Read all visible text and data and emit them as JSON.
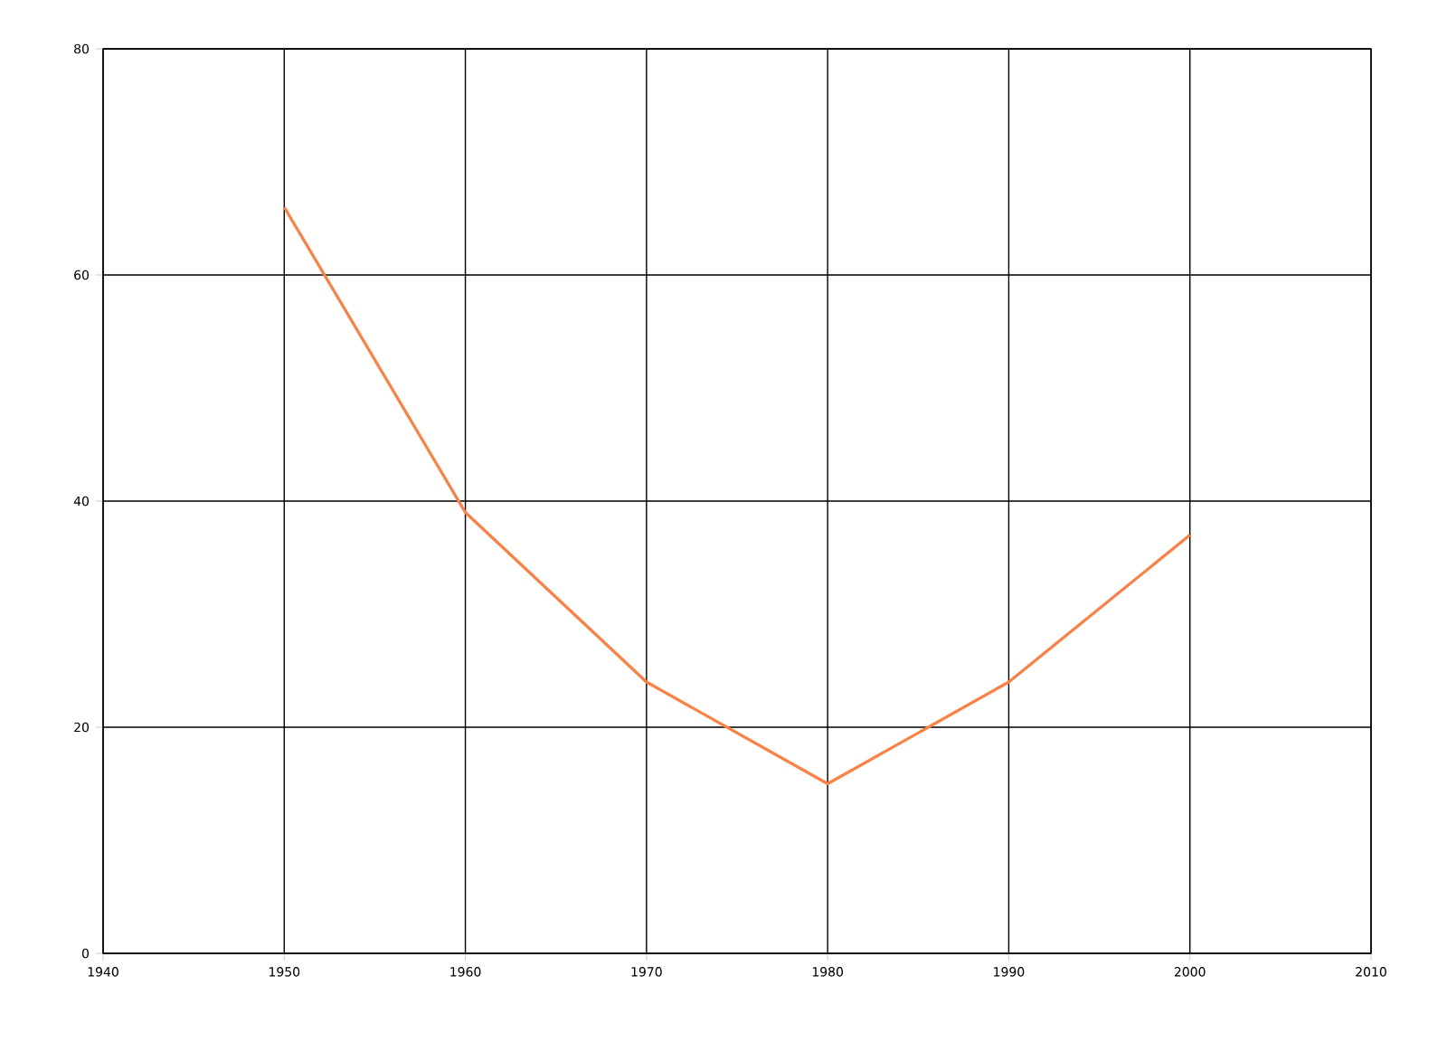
{
  "chart_data": {
    "type": "line",
    "x": [
      1950,
      1960,
      1970,
      1980,
      1990,
      2000
    ],
    "series": [
      {
        "color": "#ff7f41",
        "values": [
          66,
          39,
          24,
          15,
          24,
          37
        ]
      }
    ],
    "xlim": [
      1940,
      2010
    ],
    "ylim": [
      0,
      80
    ],
    "xticks": [
      1940,
      1950,
      1960,
      1970,
      1980,
      1990,
      2000,
      2010
    ],
    "yticks": [
      0,
      20,
      40,
      60,
      80
    ],
    "grid": true
  }
}
